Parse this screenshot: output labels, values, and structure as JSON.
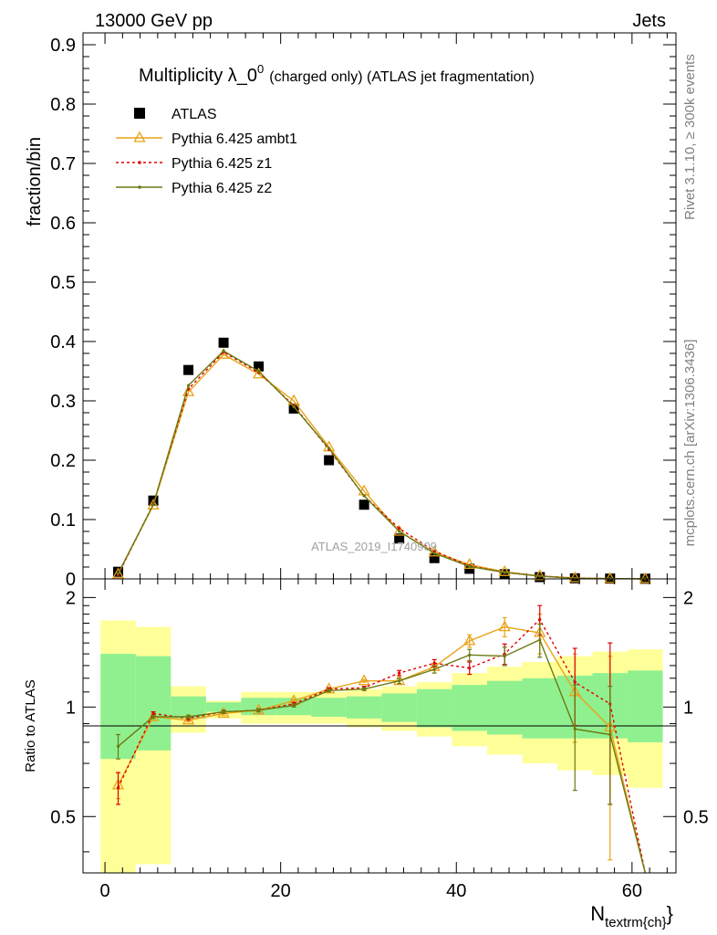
{
  "header": {
    "left": "13000 GeV pp",
    "right": "Jets"
  },
  "side_labels": {
    "rivet": "Rivet 3.1.10, ≥ 300k events",
    "mcplots": "mcplots.cern.ch [arXiv:1306.3436]"
  },
  "watermark": "ATLAS_2019_I1740909",
  "chart_data": [
    {
      "type": "line",
      "title_main": "Multiplicity λ_0",
      "title_sup": "0",
      "title_rest": "(charged only) (ATLAS jet fragmentation)",
      "ylabel": "fraction/bin",
      "xlim": [
        -2.5,
        65
      ],
      "ylim": [
        0,
        0.92
      ],
      "yticks": [
        0,
        0.1,
        0.2,
        0.3,
        0.4,
        0.5,
        0.6,
        0.7,
        0.8,
        0.9
      ],
      "ytick_labels": [
        "0",
        "0.1",
        "0.2",
        "0.3",
        "0.4",
        "0.5",
        "0.6",
        "0.7",
        "0.8",
        "0.9"
      ],
      "x": [
        1.5,
        5.5,
        9.5,
        13.5,
        17.5,
        21.5,
        25.5,
        29.5,
        33.5,
        37.5,
        41.5,
        45.5,
        49.5,
        53.5,
        57.5,
        61.5
      ],
      "series": [
        {
          "name": "ATLAS",
          "color": "#000000",
          "marker": "square",
          "values": [
            0.012,
            0.132,
            0.352,
            0.398,
            0.358,
            0.287,
            0.2,
            0.125,
            0.068,
            0.035,
            0.017,
            0.008,
            0.003,
            0.001,
            0.0005,
            0.0002
          ]
        },
        {
          "name": "Pythia 6.425 ambt1",
          "color": "#e8a317",
          "marker": "triangle",
          "dash": "",
          "values": [
            0.008,
            0.124,
            0.315,
            0.378,
            0.345,
            0.3,
            0.222,
            0.148,
            0.08,
            0.045,
            0.024,
            0.012,
            0.005,
            0.0015,
            0.0004,
            0.0001
          ]
        },
        {
          "name": "Pythia 6.425 z1",
          "color": "#e00000",
          "marker": "dot",
          "dash": "3,3",
          "values": [
            0.007,
            0.126,
            0.32,
            0.382,
            0.348,
            0.292,
            0.218,
            0.14,
            0.085,
            0.047,
            0.022,
            0.011,
            0.005,
            0.0012,
            0.0005,
            0.0001
          ]
        },
        {
          "name": "Pythia 6.425 z2",
          "color": "#6b7a12",
          "marker": "dot",
          "dash": "",
          "values": [
            0.009,
            0.125,
            0.326,
            0.384,
            0.35,
            0.29,
            0.22,
            0.14,
            0.08,
            0.043,
            0.021,
            0.011,
            0.0047,
            0.001,
            0.0004,
            0.0001
          ]
        }
      ]
    },
    {
      "type": "line",
      "ylabel": "Ratio to ATLAS",
      "xlabel_main": "N",
      "xlabel_sub": "textrm{ch}",
      "xlabel_close": "}",
      "xlim": [
        -2.5,
        65
      ],
      "ylim": [
        0.35,
        2.25
      ],
      "yticks": [
        0.5,
        1,
        2
      ],
      "ytick_labels": [
        "0.5",
        "1",
        "2"
      ],
      "xticks": [
        0,
        20,
        40,
        60
      ],
      "xtick_labels": [
        "0",
        "20",
        "40",
        "60"
      ],
      "band_edges": [
        -0.5,
        3.5,
        7.5,
        11.5,
        15.5,
        19.5,
        23.5,
        27.5,
        31.5,
        35.5,
        39.5,
        43.5,
        47.5,
        51.5,
        55.5,
        59.5,
        63.5
      ],
      "band_1sigma": [
        [
          0.72,
          1.4
        ],
        [
          0.76,
          1.38
        ],
        [
          0.93,
          1.07
        ],
        [
          0.97,
          1.03
        ],
        [
          0.95,
          1.06
        ],
        [
          0.95,
          1.06
        ],
        [
          0.94,
          1.06
        ],
        [
          0.93,
          1.07
        ],
        [
          0.91,
          1.09
        ],
        [
          0.88,
          1.12
        ],
        [
          0.86,
          1.15
        ],
        [
          0.84,
          1.18
        ],
        [
          0.82,
          1.2
        ],
        [
          0.82,
          1.22
        ],
        [
          0.82,
          1.24
        ],
        [
          0.8,
          1.26
        ],
        [
          0.81,
          1.28
        ]
      ],
      "band_2sigma": [
        [
          0.35,
          1.73
        ],
        [
          0.37,
          1.66
        ],
        [
          0.85,
          1.14
        ],
        [
          0.93,
          1.04
        ],
        [
          0.9,
          1.1
        ],
        [
          0.9,
          1.1
        ],
        [
          0.9,
          1.1
        ],
        [
          0.88,
          1.12
        ],
        [
          0.86,
          1.14
        ],
        [
          0.83,
          1.17
        ],
        [
          0.78,
          1.24
        ],
        [
          0.74,
          1.29
        ],
        [
          0.7,
          1.33
        ],
        [
          0.67,
          1.38
        ],
        [
          0.65,
          1.42
        ],
        [
          0.6,
          1.44
        ],
        [
          0.54,
          1.57
        ]
      ],
      "series": [
        {
          "name": "Pythia 6.425 ambt1",
          "color": "#e8a317",
          "values": [
            0.61,
            0.94,
            0.92,
            0.96,
            0.98,
            1.04,
            1.12,
            1.18,
            1.18,
            1.29,
            1.52,
            1.66,
            1.6,
            1.1,
            0.88,
            0.1
          ],
          "errors": [
            0.05,
            0.01,
            0.01,
            0.01,
            0.01,
            0.01,
            0.01,
            0.01,
            0.02,
            0.03,
            0.06,
            0.1,
            0.2,
            0.3,
            0.5,
            0.0
          ]
        },
        {
          "name": "Pythia 6.425 z1",
          "color": "#e00000",
          "values": [
            0.6,
            0.96,
            0.93,
            0.97,
            0.98,
            1.02,
            1.12,
            1.13,
            1.24,
            1.32,
            1.28,
            1.4,
            1.74,
            1.17,
            1.02,
            0.1
          ],
          "errors": [
            0.06,
            0.01,
            0.01,
            0.01,
            0.01,
            0.01,
            0.01,
            0.01,
            0.02,
            0.03,
            0.05,
            0.09,
            0.16,
            0.28,
            0.48,
            0.0
          ]
        },
        {
          "name": "Pythia 6.425 z2",
          "color": "#6b7a12",
          "values": [
            0.78,
            0.94,
            0.94,
            0.97,
            0.98,
            1.01,
            1.11,
            1.12,
            1.18,
            1.27,
            1.39,
            1.38,
            1.53,
            0.87,
            0.84,
            0.1
          ],
          "errors": [
            0.06,
            0.01,
            0.01,
            0.01,
            0.01,
            0.01,
            0.01,
            0.01,
            0.02,
            0.03,
            0.05,
            0.08,
            0.16,
            0.28,
            0.3,
            0.0
          ]
        }
      ]
    }
  ]
}
